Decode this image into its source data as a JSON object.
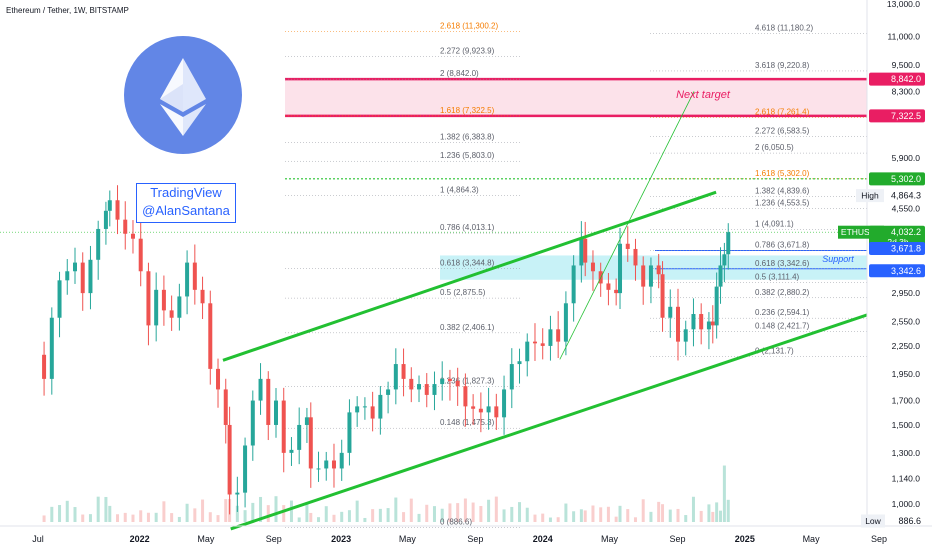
{
  "header": {
    "title": "Ethereum / Tether, 1W, BITSTAMP"
  },
  "watermark": {
    "line1": "TradingView",
    "line2": "@AlanSantana"
  },
  "annotations": {
    "next_target": "Next target",
    "support": "Support",
    "symbol_tag": "ETHUSDT",
    "countdown": "2d 3h",
    "high_label": "High",
    "low_label": "Low"
  },
  "colors": {
    "up": "#26a69a",
    "down": "#ef5350",
    "green_trend": "#22c032",
    "target_line": "#e91e63",
    "target_zone": "#fbdde6",
    "support_zone": "#c8f2f7",
    "support_line": "#2962ff",
    "fib_text": "#5d606b",
    "fib_highlight": "#f57c00",
    "dash_green": "#26c22e"
  },
  "chart_data": {
    "type": "candlestick",
    "title": "Ethereum / Tether, 1W, BITSTAMP",
    "y_scale": "log",
    "y_ticks": [
      {
        "value": 13000,
        "label": "13,000.0"
      },
      {
        "value": 11000,
        "label": "11,000.0"
      },
      {
        "value": 9500,
        "label": "9,500.0"
      },
      {
        "value": 8300,
        "label": "8,300.0"
      },
      {
        "value": 5900,
        "label": "5,900.0"
      },
      {
        "value": 4550,
        "label": "4,550.0"
      },
      {
        "value": 2950,
        "label": "2,950.0"
      },
      {
        "value": 2550,
        "label": "2,550.0"
      },
      {
        "value": 2250,
        "label": "2,250.0"
      },
      {
        "value": 1950,
        "label": "1,950.0"
      },
      {
        "value": 1700,
        "label": "1,700.0"
      },
      {
        "value": 1500,
        "label": "1,500.0"
      },
      {
        "value": 1300,
        "label": "1,300.0"
      },
      {
        "value": 1140,
        "label": "1,140.0"
      },
      {
        "value": 1000,
        "label": "1,000.0"
      }
    ],
    "x_ticks": [
      {
        "date": "2021-07-01",
        "label": "Jul"
      },
      {
        "date": "2022-01-01",
        "label": "2022"
      },
      {
        "date": "2022-05-01",
        "label": "May"
      },
      {
        "date": "2022-09-01",
        "label": "Sep"
      },
      {
        "date": "2023-01-01",
        "label": "2023"
      },
      {
        "date": "2023-05-01",
        "label": "May"
      },
      {
        "date": "2023-09-01",
        "label": "Sep"
      },
      {
        "date": "2024-01-01",
        "label": "2024"
      },
      {
        "date": "2024-05-01",
        "label": "May"
      },
      {
        "date": "2024-09-01",
        "label": "Sep"
      },
      {
        "date": "2025-01-01",
        "label": "2025"
      },
      {
        "date": "2025-05-01",
        "label": "May"
      },
      {
        "date": "2025-09-01",
        "label": "Sep"
      }
    ],
    "price_tags": [
      {
        "value": 8842.0,
        "label": "8,842.0",
        "kind": "target"
      },
      {
        "value": 7322.5,
        "label": "7,322.5",
        "kind": "target"
      },
      {
        "value": 5302.0,
        "label": "5,302.0",
        "kind": "green"
      },
      {
        "value": 4864.3,
        "label": "4,864.3",
        "kind": "high"
      },
      {
        "value": 4032.2,
        "label": "4,032.2",
        "kind": "current"
      },
      {
        "value": 3671.8,
        "label": "3,671.8",
        "kind": "support"
      },
      {
        "value": 3342.6,
        "label": "3,342.6",
        "kind": "support"
      },
      {
        "value": 886.6,
        "label": "886.6",
        "kind": "low"
      }
    ],
    "fib_left": [
      {
        "label": "2.618 (11,300.2)",
        "value": 11300.2,
        "highlight": true
      },
      {
        "label": "2.272 (9,923.9)",
        "value": 9923.9,
        "highlight": false
      },
      {
        "label": "2 (8,842.0)",
        "value": 8842.0,
        "highlight": false
      },
      {
        "label": "1.618 (7,322.5)",
        "value": 7322.5,
        "highlight": true
      },
      {
        "label": "1.382 (6,383.8)",
        "value": 6383.8,
        "highlight": false
      },
      {
        "label": "1.236 (5,803.0)",
        "value": 5803.0,
        "highlight": false
      },
      {
        "label": "1 (4,864.3)",
        "value": 4864.3,
        "highlight": false
      },
      {
        "label": "0.786 (4,013.1)",
        "value": 4013.1,
        "highlight": false
      },
      {
        "label": "0.618 (3,344.8)",
        "value": 3344.8,
        "highlight": false
      },
      {
        "label": "0.5 (2,875.5)",
        "value": 2875.5,
        "highlight": false
      },
      {
        "label": "0.382 (2,406.1)",
        "value": 2406.1,
        "highlight": false
      },
      {
        "label": "0.236 (1,827.3)",
        "value": 1827.3,
        "highlight": false
      },
      {
        "label": "0.148 (1,475.3)",
        "value": 1475.3,
        "highlight": false
      },
      {
        "label": "0 (886.6)",
        "value": 886.6,
        "highlight": false
      }
    ],
    "fib_right": [
      {
        "label": "4.618 (11,180.2)",
        "value": 11180.2,
        "highlight": false
      },
      {
        "label": "3.618 (9,220.8)",
        "value": 9220.8,
        "highlight": false
      },
      {
        "label": "2.618 (7,261.4)",
        "value": 7261.4,
        "highlight": true
      },
      {
        "label": "2.272 (6,583.5)",
        "value": 6583.5,
        "highlight": false
      },
      {
        "label": "2 (6,050.5)",
        "value": 6050.5,
        "highlight": false
      },
      {
        "label": "1.618 (5,302.0)",
        "value": 5302.0,
        "highlight": true
      },
      {
        "label": "1.382 (4,839.6)",
        "value": 4839.6,
        "highlight": false
      },
      {
        "label": "1.236 (4,553.5)",
        "value": 4553.5,
        "highlight": false
      },
      {
        "label": "1 (4,091.1)",
        "value": 4091.1,
        "highlight": false
      },
      {
        "label": "0.786 (3,671.8)",
        "value": 3671.8,
        "highlight": false
      },
      {
        "label": "0.618 (3,342.6)",
        "value": 3342.6,
        "highlight": false
      },
      {
        "label": "0.5 (3,111.4)",
        "value": 3111.4,
        "highlight": false
      },
      {
        "label": "0.382 (2,880.2)",
        "value": 2880.2,
        "highlight": false
      },
      {
        "label": "0.236 (2,594.1)",
        "value": 2594.1,
        "highlight": false
      },
      {
        "label": "0.148 (2,421.7)",
        "value": 2421.7,
        "highlight": false
      },
      {
        "label": "0 (2,131.7)",
        "value": 2131.7,
        "highlight": false
      }
    ],
    "zones": {
      "next_target": [
        7322.5,
        8842.0
      ],
      "support": [
        3342.6,
        3671.8
      ],
      "green_level": 5302.0
    },
    "trendlines": [
      {
        "name": "upper channel",
        "from": [
          "2022-06-01",
          2090
        ],
        "to": [
          "2024-11-10",
          4950
        ]
      },
      {
        "name": "lower channel",
        "from": [
          "2022-06-15",
          880
        ],
        "to": [
          "2025-08-15",
          2650
        ]
      },
      {
        "name": "thin projection",
        "from": [
          "2024-02-01",
          2100
        ],
        "to": [
          "2024-10-01",
          8300
        ]
      }
    ],
    "weekly_closes": [
      {
        "date": "2021-06-28",
        "close": 2150
      },
      {
        "date": "2021-07-12",
        "close": 1900
      },
      {
        "date": "2021-07-26",
        "close": 2600
      },
      {
        "date": "2021-08-09",
        "close": 3150
      },
      {
        "date": "2021-08-23",
        "close": 3300
      },
      {
        "date": "2021-09-06",
        "close": 3450
      },
      {
        "date": "2021-09-20",
        "close": 2950
      },
      {
        "date": "2021-10-04",
        "close": 3500
      },
      {
        "date": "2021-10-18",
        "close": 4100
      },
      {
        "date": "2021-11-01",
        "close": 4500
      },
      {
        "date": "2021-11-08",
        "close": 4750
      },
      {
        "date": "2021-11-22",
        "close": 4300
      },
      {
        "date": "2021-12-06",
        "close": 4000
      },
      {
        "date": "2021-12-20",
        "close": 3900
      },
      {
        "date": "2022-01-03",
        "close": 3300
      },
      {
        "date": "2022-01-17",
        "close": 2500
      },
      {
        "date": "2022-01-31",
        "close": 3000
      },
      {
        "date": "2022-02-14",
        "close": 2700
      },
      {
        "date": "2022-02-28",
        "close": 2600
      },
      {
        "date": "2022-03-14",
        "close": 2900
      },
      {
        "date": "2022-03-28",
        "close": 3450
      },
      {
        "date": "2022-04-11",
        "close": 3000
      },
      {
        "date": "2022-04-25",
        "close": 2800
      },
      {
        "date": "2022-05-09",
        "close": 2000
      },
      {
        "date": "2022-05-23",
        "close": 1800
      },
      {
        "date": "2022-06-06",
        "close": 1500
      },
      {
        "date": "2022-06-13",
        "close": 1050
      },
      {
        "date": "2022-06-27",
        "close": 1060
      },
      {
        "date": "2022-07-11",
        "close": 1350
      },
      {
        "date": "2022-07-25",
        "close": 1700
      },
      {
        "date": "2022-08-08",
        "close": 1900
      },
      {
        "date": "2022-08-22",
        "close": 1500
      },
      {
        "date": "2022-09-05",
        "close": 1700
      },
      {
        "date": "2022-09-19",
        "close": 1300
      },
      {
        "date": "2022-10-03",
        "close": 1320
      },
      {
        "date": "2022-10-17",
        "close": 1500
      },
      {
        "date": "2022-10-31",
        "close": 1560
      },
      {
        "date": "2022-11-07",
        "close": 1200
      },
      {
        "date": "2022-11-21",
        "close": 1200
      },
      {
        "date": "2022-12-05",
        "close": 1250
      },
      {
        "date": "2022-12-19",
        "close": 1200
      },
      {
        "date": "2023-01-02",
        "close": 1300
      },
      {
        "date": "2023-01-16",
        "close": 1600
      },
      {
        "date": "2023-01-30",
        "close": 1650
      },
      {
        "date": "2023-02-13",
        "close": 1650
      },
      {
        "date": "2023-02-27",
        "close": 1550
      },
      {
        "date": "2023-03-13",
        "close": 1750
      },
      {
        "date": "2023-03-27",
        "close": 1800
      },
      {
        "date": "2023-04-10",
        "close": 2050
      },
      {
        "date": "2023-04-24",
        "close": 1900
      },
      {
        "date": "2023-05-08",
        "close": 1800
      },
      {
        "date": "2023-05-22",
        "close": 1850
      },
      {
        "date": "2023-06-05",
        "close": 1750
      },
      {
        "date": "2023-06-19",
        "close": 1850
      },
      {
        "date": "2023-07-03",
        "close": 1900
      },
      {
        "date": "2023-07-17",
        "close": 1880
      },
      {
        "date": "2023-07-31",
        "close": 1830
      },
      {
        "date": "2023-08-14",
        "close": 1650
      },
      {
        "date": "2023-08-28",
        "close": 1630
      },
      {
        "date": "2023-09-11",
        "close": 1600
      },
      {
        "date": "2023-09-25",
        "close": 1650
      },
      {
        "date": "2023-10-09",
        "close": 1560
      },
      {
        "date": "2023-10-23",
        "close": 1800
      },
      {
        "date": "2023-11-06",
        "close": 2050
      },
      {
        "date": "2023-11-20",
        "close": 2080
      },
      {
        "date": "2023-12-04",
        "close": 2300
      },
      {
        "date": "2023-12-18",
        "close": 2280
      },
      {
        "date": "2024-01-01",
        "close": 2250
      },
      {
        "date": "2024-01-15",
        "close": 2450
      },
      {
        "date": "2024-01-29",
        "close": 2300
      },
      {
        "date": "2024-02-12",
        "close": 2800
      },
      {
        "date": "2024-02-26",
        "close": 3400
      },
      {
        "date": "2024-03-11",
        "close": 3900
      },
      {
        "date": "2024-03-18",
        "close": 3450
      },
      {
        "date": "2024-04-01",
        "close": 3300
      },
      {
        "date": "2024-04-15",
        "close": 3100
      },
      {
        "date": "2024-04-29",
        "close": 3000
      },
      {
        "date": "2024-05-13",
        "close": 2950
      },
      {
        "date": "2024-05-20",
        "close": 3800
      },
      {
        "date": "2024-06-03",
        "close": 3700
      },
      {
        "date": "2024-06-17",
        "close": 3400
      },
      {
        "date": "2024-07-01",
        "close": 3050
      },
      {
        "date": "2024-07-15",
        "close": 3400
      },
      {
        "date": "2024-07-29",
        "close": 3250
      },
      {
        "date": "2024-08-05",
        "close": 2600
      },
      {
        "date": "2024-08-19",
        "close": 2750
      },
      {
        "date": "2024-09-02",
        "close": 2300
      },
      {
        "date": "2024-09-16",
        "close": 2450
      },
      {
        "date": "2024-09-30",
        "close": 2650
      },
      {
        "date": "2024-10-14",
        "close": 2450
      },
      {
        "date": "2024-10-28",
        "close": 2550
      },
      {
        "date": "2024-11-04",
        "close": 2500
      },
      {
        "date": "2024-11-11",
        "close": 3050
      },
      {
        "date": "2024-11-18",
        "close": 3400
      },
      {
        "date": "2024-11-25",
        "close": 3600
      },
      {
        "date": "2024-12-02",
        "close": 4032
      }
    ]
  }
}
